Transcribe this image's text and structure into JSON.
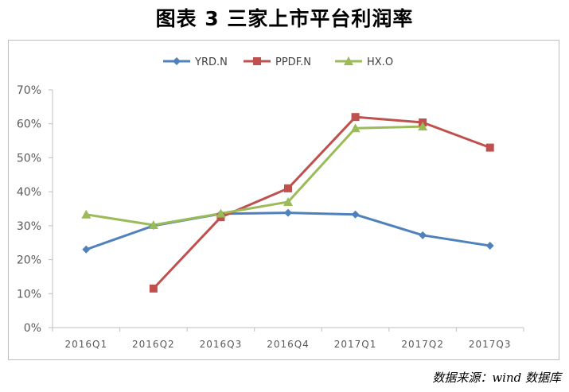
{
  "title": "图表 3 三家上市平台利润率",
  "source": "数据来源：wind 数据库",
  "chart_data": {
    "type": "line",
    "categories": [
      "2016Q1",
      "2016Q2",
      "2016Q3",
      "2016Q4",
      "2017Q1",
      "2017Q2",
      "2017Q3"
    ],
    "ylim": [
      0,
      0.7
    ],
    "yticks": [
      0,
      0.1,
      0.2,
      0.3,
      0.4,
      0.5,
      0.6,
      0.7
    ],
    "ytick_labels": [
      "0%",
      "10%",
      "20%",
      "30%",
      "40%",
      "50%",
      "60%",
      "70%"
    ],
    "grid": false,
    "legend_position": "top",
    "series": [
      {
        "name": "YRD.N",
        "color": "#4f81bd",
        "marker": "diamond",
        "values": [
          0.23,
          0.3,
          0.335,
          0.338,
          0.333,
          0.272,
          0.241
        ]
      },
      {
        "name": "PPDF.N",
        "color": "#c0504d",
        "marker": "square",
        "values": [
          null,
          0.115,
          0.325,
          0.41,
          0.62,
          0.604,
          0.53
        ]
      },
      {
        "name": "HX.O",
        "color": "#9bbb59",
        "marker": "triangle",
        "values": [
          0.333,
          0.302,
          0.336,
          0.37,
          0.587,
          0.592,
          null
        ]
      }
    ]
  }
}
